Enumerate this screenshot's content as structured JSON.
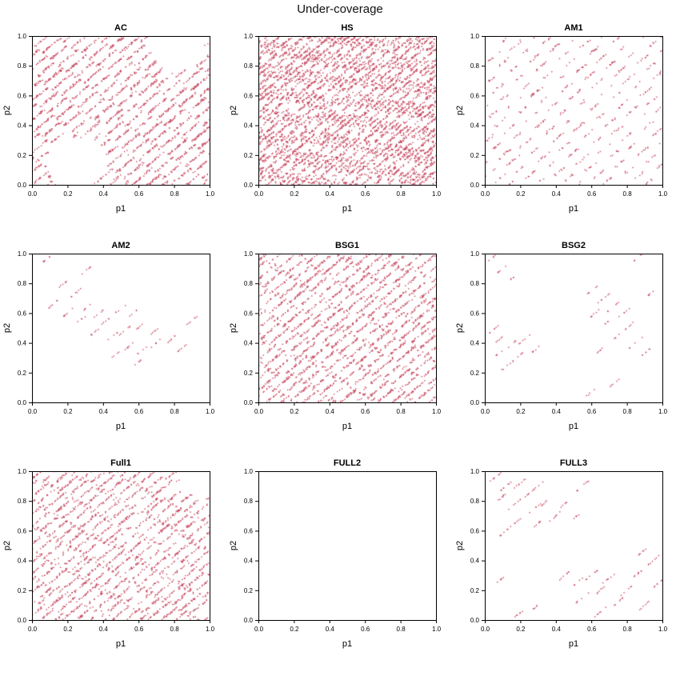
{
  "chart_data": {
    "type": "scatter",
    "title": "Under-coverage",
    "xlabel": "p1",
    "ylabel": "p2",
    "xlim": [
      0,
      1
    ],
    "ylim": [
      0,
      1
    ],
    "ticks": [
      0,
      0.2,
      0.4,
      0.6,
      0.8,
      1
    ],
    "tick_labels": [
      "0.0",
      "0.2",
      "0.4",
      "0.6",
      "0.8",
      "1.0"
    ],
    "point_color": "#c6475e",
    "grid": "off",
    "layout": "3x3 panels, shared axis style, R base-graphics look",
    "panels": [
      {
        "title": "AC",
        "pattern": "stripes",
        "n": 2200,
        "lines": 23,
        "dash_freq": 5,
        "dash_fill": 0.55,
        "jitter": 0.012,
        "phase": 0.0,
        "seed": 101,
        "holes": [
          [
            0.25,
            0.15,
            0.17
          ],
          [
            0.82,
            0.92,
            0.15
          ]
        ]
      },
      {
        "title": "HS",
        "pattern": "stripes",
        "n": 5200,
        "lines": 28,
        "dash_freq": 4,
        "dash_fill": 0.8,
        "jitter": 0.014,
        "phase": 0.13,
        "seed": 102
      },
      {
        "title": "AM1",
        "pattern": "stripes",
        "n": 650,
        "lines": 21,
        "dash_freq": 5,
        "dash_fill": 0.32,
        "jitter": 0.012,
        "phase": 0.05,
        "seed": 103
      },
      {
        "title": "AM2",
        "pattern": "clusters",
        "points_per_cluster": 4,
        "seg_len": 0.03,
        "seed": 104,
        "clusters": [
          [
            0.07,
            0.95
          ],
          [
            0.3,
            0.88
          ],
          [
            0.18,
            0.8
          ],
          [
            0.25,
            0.74
          ],
          [
            0.12,
            0.66
          ],
          [
            0.2,
            0.6
          ],
          [
            0.3,
            0.63
          ],
          [
            0.38,
            0.6
          ],
          [
            0.27,
            0.55
          ],
          [
            0.42,
            0.55
          ],
          [
            0.5,
            0.63
          ],
          [
            0.57,
            0.6
          ],
          [
            0.35,
            0.47
          ],
          [
            0.45,
            0.44
          ],
          [
            0.52,
            0.48
          ],
          [
            0.6,
            0.5
          ],
          [
            0.68,
            0.47
          ],
          [
            0.55,
            0.38
          ],
          [
            0.62,
            0.35
          ],
          [
            0.48,
            0.33
          ],
          [
            0.7,
            0.4
          ],
          [
            0.78,
            0.42
          ],
          [
            0.85,
            0.37
          ],
          [
            0.6,
            0.27
          ],
          [
            0.9,
            0.55
          ]
        ]
      },
      {
        "title": "BSG1",
        "pattern": "stripes",
        "n": 2700,
        "lines": 24,
        "dash_freq": 5,
        "dash_fill": 0.6,
        "jitter": 0.012,
        "phase": 0.08,
        "seed": 105
      },
      {
        "title": "BSG2",
        "pattern": "clusters",
        "points_per_cluster": 4,
        "seg_len": 0.035,
        "seed": 106,
        "clusters": [
          [
            0.04,
            0.97
          ],
          [
            0.1,
            0.9
          ],
          [
            0.16,
            0.84
          ],
          [
            0.06,
            0.5
          ],
          [
            0.1,
            0.44
          ],
          [
            0.14,
            0.38
          ],
          [
            0.08,
            0.33
          ],
          [
            0.18,
            0.3
          ],
          [
            0.22,
            0.42
          ],
          [
            0.13,
            0.25
          ],
          [
            0.28,
            0.35
          ],
          [
            0.6,
            0.75
          ],
          [
            0.67,
            0.7
          ],
          [
            0.72,
            0.64
          ],
          [
            0.62,
            0.6
          ],
          [
            0.7,
            0.55
          ],
          [
            0.78,
            0.6
          ],
          [
            0.82,
            0.52
          ],
          [
            0.75,
            0.45
          ],
          [
            0.85,
            0.4
          ],
          [
            0.9,
            0.33
          ],
          [
            0.65,
            0.35
          ],
          [
            0.6,
            0.07
          ],
          [
            0.72,
            0.12
          ],
          [
            0.86,
            0.97
          ],
          [
            0.95,
            0.75
          ]
        ]
      },
      {
        "title": "Full1",
        "pattern": "stripes",
        "n": 2400,
        "lines": 25,
        "dash_freq": 5,
        "dash_fill": 0.6,
        "jitter": 0.012,
        "phase": 0.11,
        "seed": 107,
        "holes": [
          [
            0.95,
            0.95,
            0.12
          ]
        ]
      },
      {
        "title": "FULL2",
        "pattern": "empty"
      },
      {
        "title": "FULL3",
        "pattern": "clusters",
        "points_per_cluster": 5,
        "seg_len": 0.035,
        "seed": 109,
        "clusters": [
          [
            0.06,
            0.96
          ],
          [
            0.12,
            0.9
          ],
          [
            0.2,
            0.92
          ],
          [
            0.09,
            0.82
          ],
          [
            0.17,
            0.78
          ],
          [
            0.25,
            0.85
          ],
          [
            0.3,
            0.9
          ],
          [
            0.28,
            0.75
          ],
          [
            0.35,
            0.8
          ],
          [
            0.2,
            0.68
          ],
          [
            0.3,
            0.65
          ],
          [
            0.4,
            0.7
          ],
          [
            0.45,
            0.78
          ],
          [
            0.5,
            0.68
          ],
          [
            0.12,
            0.6
          ],
          [
            0.55,
            0.9
          ],
          [
            0.07,
            0.25
          ],
          [
            0.45,
            0.3
          ],
          [
            0.52,
            0.25
          ],
          [
            0.6,
            0.3
          ],
          [
            0.55,
            0.15
          ],
          [
            0.65,
            0.2
          ],
          [
            0.7,
            0.28
          ],
          [
            0.75,
            0.12
          ],
          [
            0.8,
            0.2
          ],
          [
            0.85,
            0.3
          ],
          [
            0.9,
            0.1
          ],
          [
            0.95,
            0.4
          ],
          [
            0.88,
            0.45
          ],
          [
            0.3,
            0.1
          ],
          [
            0.2,
            0.05
          ],
          [
            0.65,
            0.05
          ],
          [
            0.98,
            0.25
          ]
        ]
      }
    ]
  }
}
